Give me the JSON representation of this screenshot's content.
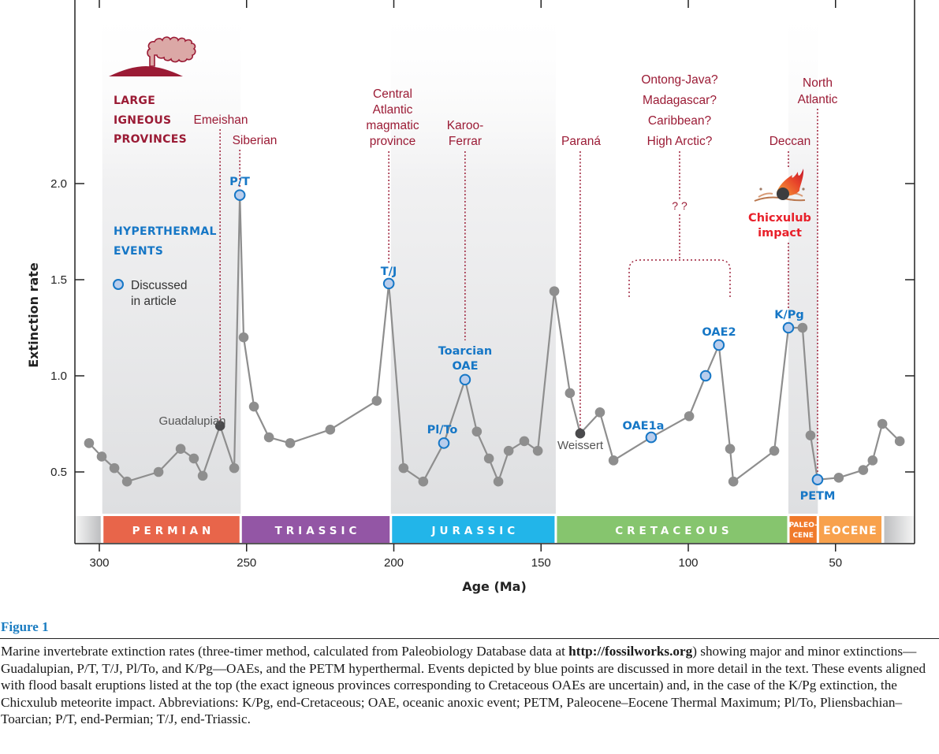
{
  "chart_data": {
    "type": "line",
    "title": "",
    "xlabel": "Age (Ma)",
    "ylabel": "Extinction rate",
    "xlim": [
      303.5,
      23
    ],
    "ylim": [
      0.13,
      2.95
    ],
    "x_reversed": true,
    "grid": false,
    "xticks": [
      300,
      250,
      200,
      150,
      100,
      50
    ],
    "xtick_labels": [
      "300",
      "250",
      "200",
      "150",
      "100",
      "50"
    ],
    "yticks": [
      0.5,
      1.0,
      1.5,
      2.0
    ],
    "ytick_labels": [
      "0.5",
      "1.0",
      "1.5",
      "2.0"
    ],
    "series": [
      {
        "name": "Marine invertebrate extinction rate (three-timer)",
        "points": [
          {
            "age": 303.5,
            "rate": 0.65,
            "kind": "normal"
          },
          {
            "age": 299.2,
            "rate": 0.58,
            "kind": "normal"
          },
          {
            "age": 294.9,
            "rate": 0.52,
            "kind": "normal"
          },
          {
            "age": 290.6,
            "rate": 0.45,
            "kind": "normal"
          },
          {
            "age": 279.9,
            "rate": 0.5,
            "kind": "normal"
          },
          {
            "age": 272.4,
            "rate": 0.62,
            "kind": "normal"
          },
          {
            "age": 267.9,
            "rate": 0.57,
            "kind": "normal"
          },
          {
            "age": 264.9,
            "rate": 0.48,
            "kind": "normal"
          },
          {
            "age": 259.0,
            "rate": 0.74,
            "kind": "minor",
            "label": "Guadalupian"
          },
          {
            "age": 254.2,
            "rate": 0.52,
            "kind": "normal"
          },
          {
            "age": 252.3,
            "rate": 1.94,
            "kind": "discussed",
            "label": "P/T"
          },
          {
            "age": 251.0,
            "rate": 1.2,
            "kind": "normal"
          },
          {
            "age": 247.5,
            "rate": 0.84,
            "kind": "normal"
          },
          {
            "age": 242.4,
            "rate": 0.68,
            "kind": "normal"
          },
          {
            "age": 235.2,
            "rate": 0.65,
            "kind": "normal"
          },
          {
            "age": 221.6,
            "rate": 0.72,
            "kind": "normal"
          },
          {
            "age": 205.8,
            "rate": 0.87,
            "kind": "normal"
          },
          {
            "age": 201.7,
            "rate": 1.48,
            "kind": "discussed",
            "label": "T/J"
          },
          {
            "age": 196.7,
            "rate": 0.52,
            "kind": "normal"
          },
          {
            "age": 190.0,
            "rate": 0.45,
            "kind": "normal"
          },
          {
            "age": 183.0,
            "rate": 0.65,
            "kind": "discussed",
            "label": "Pl/To"
          },
          {
            "age": 175.8,
            "rate": 0.98,
            "kind": "discussed",
            "label": "Toarcian OAE"
          },
          {
            "age": 171.8,
            "rate": 0.71,
            "kind": "normal"
          },
          {
            "age": 167.7,
            "rate": 0.57,
            "kind": "normal"
          },
          {
            "age": 164.5,
            "rate": 0.45,
            "kind": "normal"
          },
          {
            "age": 161.0,
            "rate": 0.61,
            "kind": "normal"
          },
          {
            "age": 155.7,
            "rate": 0.66,
            "kind": "normal"
          },
          {
            "age": 151.1,
            "rate": 0.61,
            "kind": "normal"
          },
          {
            "age": 145.5,
            "rate": 1.44,
            "kind": "normal"
          },
          {
            "age": 140.2,
            "rate": 0.91,
            "kind": "normal"
          },
          {
            "age": 136.7,
            "rate": 0.7,
            "kind": "minor",
            "label": "Weissert"
          },
          {
            "age": 130.0,
            "rate": 0.81,
            "kind": "normal"
          },
          {
            "age": 125.4,
            "rate": 0.56,
            "kind": "normal"
          },
          {
            "age": 112.6,
            "rate": 0.68,
            "kind": "discussed",
            "label": "OAE1a"
          },
          {
            "age": 99.7,
            "rate": 0.79,
            "kind": "normal"
          },
          {
            "age": 94.1,
            "rate": 1.0,
            "kind": "discussed"
          },
          {
            "age": 89.6,
            "rate": 1.16,
            "kind": "discussed",
            "label": "OAE2"
          },
          {
            "age": 85.8,
            "rate": 0.62,
            "kind": "normal"
          },
          {
            "age": 84.7,
            "rate": 0.45,
            "kind": "normal"
          },
          {
            "age": 70.8,
            "rate": 0.61,
            "kind": "normal"
          },
          {
            "age": 66.0,
            "rate": 1.25,
            "kind": "discussed",
            "label": "K/Pg"
          },
          {
            "age": 61.2,
            "rate": 1.25,
            "kind": "normal"
          },
          {
            "age": 58.5,
            "rate": 0.69,
            "kind": "normal"
          },
          {
            "age": 56.1,
            "rate": 0.46,
            "kind": "discussed",
            "label": "PETM"
          },
          {
            "age": 48.9,
            "rate": 0.47,
            "kind": "normal"
          },
          {
            "age": 40.6,
            "rate": 0.51,
            "kind": "normal"
          },
          {
            "age": 37.4,
            "rate": 0.56,
            "kind": "normal"
          },
          {
            "age": 34.1,
            "rate": 0.75,
            "kind": "normal"
          },
          {
            "age": 28.2,
            "rate": 0.66,
            "kind": "normal"
          }
        ]
      }
    ],
    "periods": [
      {
        "name": "PERMIAN",
        "start": 299,
        "end": 252,
        "color": "#e8654a"
      },
      {
        "name": "TRIASSIC",
        "start": 252,
        "end": 201,
        "color": "#9356a5"
      },
      {
        "name": "JURASSIC",
        "start": 201,
        "end": 145,
        "color": "#22b5e9"
      },
      {
        "name": "CRETACEOUS",
        "start": 145,
        "end": 66,
        "color": "#86c56e"
      },
      {
        "name": "PALEO-CENE",
        "line1": "PALEO-",
        "line2": "CENE",
        "start": 66,
        "end": 56,
        "color": "#f07a2b"
      },
      {
        "name": "EOCENE",
        "start": 56,
        "end": 34,
        "color": "#f8a14c"
      }
    ],
    "shaded_bands": [
      {
        "start": 299,
        "end": 252
      },
      {
        "start": 201,
        "end": 145
      },
      {
        "start": 66,
        "end": 56
      }
    ],
    "large_igneous_provinces": [
      {
        "name": "Emeishan",
        "age": 259.0
      },
      {
        "name": "Siberian",
        "age": 252.3
      },
      {
        "name": "Central Atlantic magmatic province",
        "lines": [
          "Central",
          "Atlantic",
          "magmatic",
          "province"
        ],
        "age": 201.7
      },
      {
        "name": "Karoo-Ferrar",
        "lines": [
          "Karoo-",
          "Ferrar"
        ],
        "age": 175.8
      },
      {
        "name": "Paraná",
        "age": 136.7
      },
      {
        "name": "Ontong-Java? Madagascar? Caribbean? High Arctic?",
        "lines": [
          "Ontong-Java?",
          "Madagascar?",
          "Caribbean?",
          "High Arctic?"
        ],
        "age": 100,
        "uncertain_marker": "? ?"
      },
      {
        "name": "Deccan",
        "age": 66.0
      },
      {
        "name": "North Atlantic",
        "lines": [
          "North",
          "Atlantic"
        ],
        "age": 56.1
      }
    ],
    "annotations": {
      "lip_heading": [
        "LARGE",
        "IGNEOUS",
        "PROVINCES"
      ],
      "hyperthermal_heading": [
        "HYPERTHERMAL",
        "EVENTS"
      ],
      "legend_discussed": [
        "Discussed",
        "in article"
      ],
      "impact": [
        "Chicxulub",
        "impact"
      ]
    },
    "colors": {
      "line": "#8e8e8e",
      "point": "#8e8e8e",
      "minor_point": "#4a4a4c",
      "discussed_fill": "#b9cdec",
      "discussed_stroke": "#1677c6",
      "lip": "#9b1b35",
      "impact": "#e8202a",
      "band": "#e4e5e7"
    }
  },
  "caption": {
    "title": "Figure 1",
    "text_before_link": "Marine invertebrate extinction rates (three-timer method, calculated from Paleobiology Database data at ",
    "link": "http://fossilworks.org",
    "text_after_link": ") showing major and minor extinctions—Guadalupian, P/T, T/J, Pl/To, and K/Pg—OAEs, and the PETM hyperthermal. Events depicted by blue points are discussed in more detail in the text. These events aligned with flood basalt eruptions listed at the top (the exact igneous provinces corresponding to Cretaceous OAEs are uncertain) and, in the case of the K/Pg extinction, the Chicxulub meteorite impact. Abbreviations: K/Pg, end-Cretaceous; OAE, oceanic anoxic event; PETM, Paleocene–Eocene Thermal Maximum; Pl/To, Pliensbachian–Toarcian; P/T, end-Permian; T/J, end-Triassic."
  }
}
